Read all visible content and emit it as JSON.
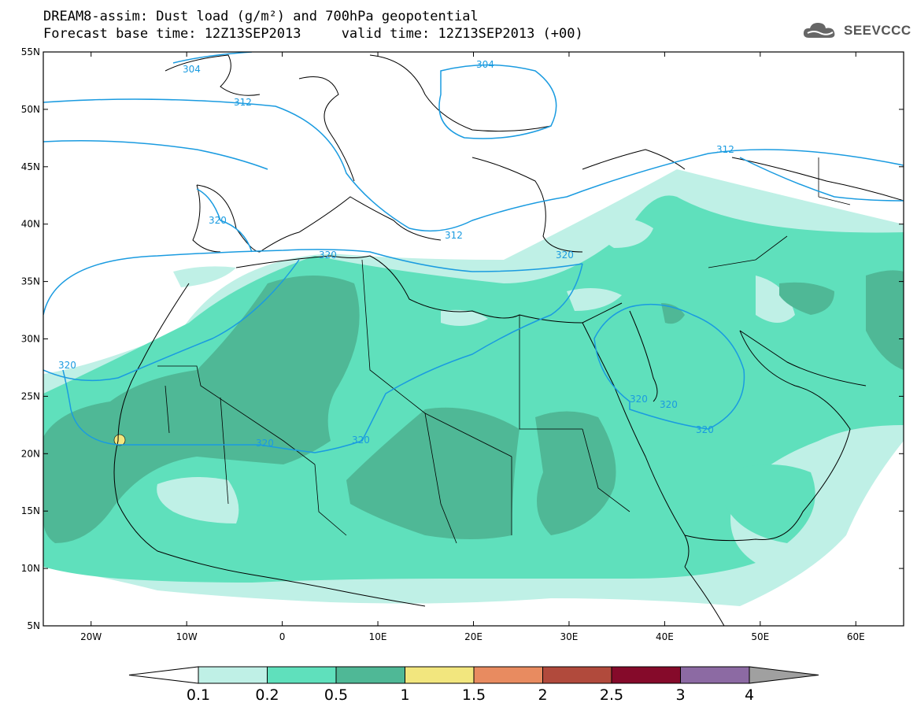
{
  "header": {
    "title_line1": "DREAM8-assim: Dust load (g/m²) and 700hPa geopotential",
    "title_line2": "Forecast base time: 12Z13SEP2013     valid time: 12Z13SEP2013 (+00)",
    "logo_text": "SEEVCCC"
  },
  "map": {
    "lon_range": [
      -25,
      65
    ],
    "lat_range": [
      5,
      55
    ],
    "lat_ticks": [
      "55N",
      "50N",
      "45N",
      "40N",
      "35N",
      "30N",
      "25N",
      "20N",
      "15N",
      "10N",
      "5N"
    ],
    "lon_ticks": [
      "20W",
      "10W",
      "0",
      "10E",
      "20E",
      "30E",
      "40E",
      "50E",
      "60E"
    ],
    "contour_labels": [
      "304",
      "304",
      "312",
      "312",
      "312",
      "320",
      "320",
      "320",
      "320",
      "320",
      "320",
      "320",
      "320",
      "320"
    ],
    "contour_color": "#1a9be0"
  },
  "colorbar": {
    "labels": [
      "0.1",
      "0.2",
      "0.5",
      "1",
      "1.5",
      "2",
      "2.5",
      "3",
      "4"
    ],
    "colors": [
      "#bff0e6",
      "#5fe0bc",
      "#4fb896",
      "#f2e67e",
      "#e88b60",
      "#b14a3c",
      "#850a2a",
      "#8c6aa3"
    ],
    "under_color": "#ffffff",
    "over_color": "#a0a0a0"
  }
}
